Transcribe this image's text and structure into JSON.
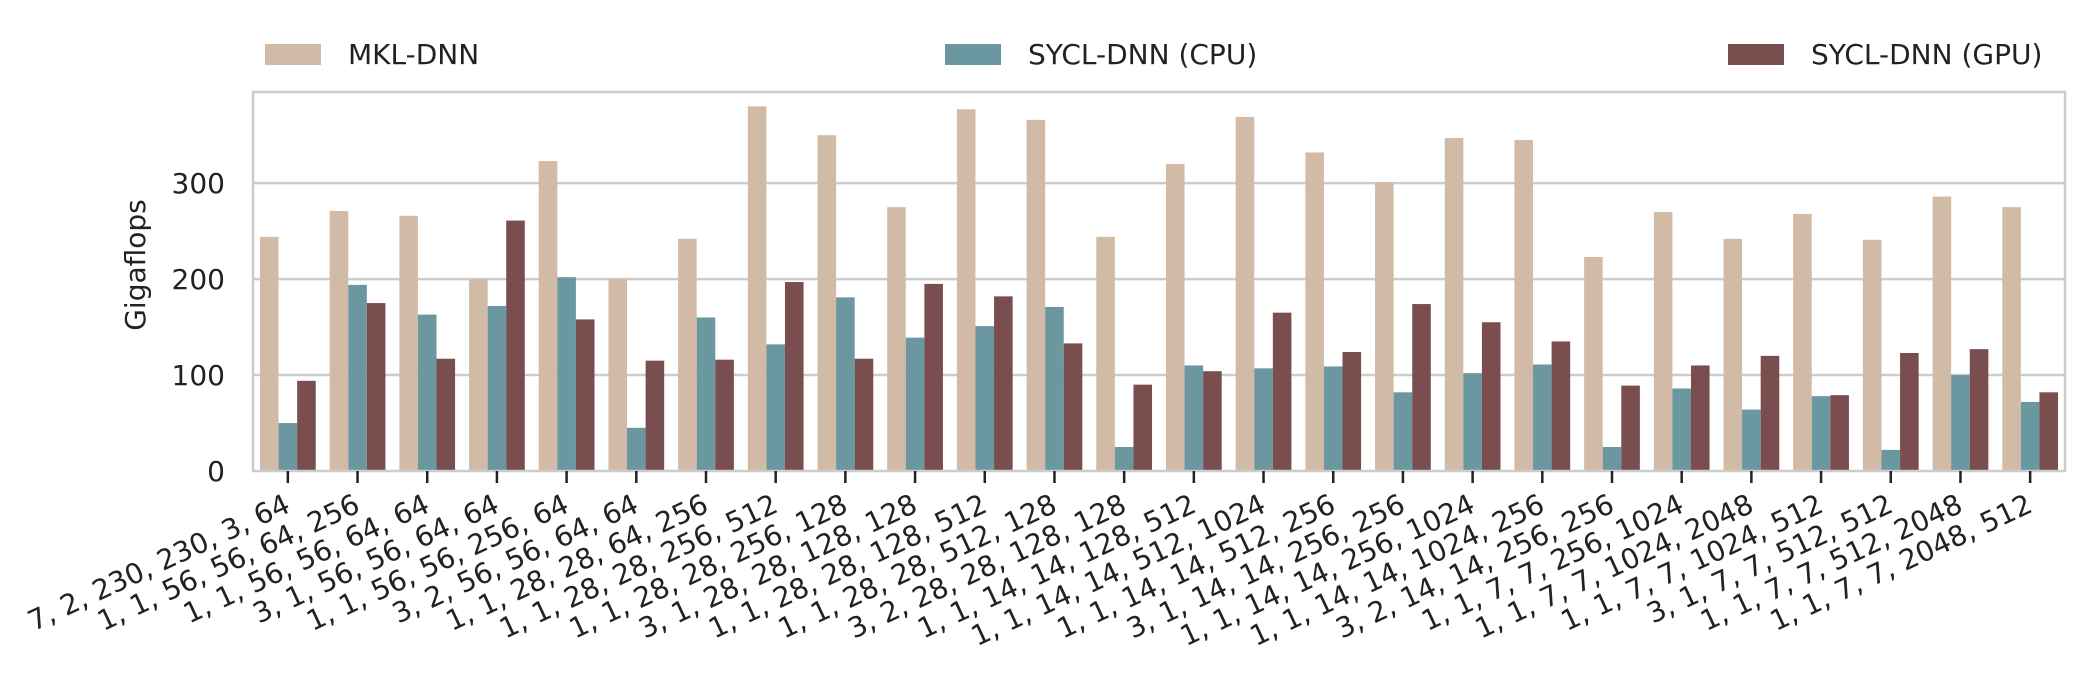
{
  "chart_data": {
    "type": "bar",
    "title": "",
    "xlabel": "",
    "ylabel": "Gigaflops",
    "ylim": [
      0,
      395
    ],
    "yticks": [
      0,
      100,
      200,
      300
    ],
    "grid": "horizontal",
    "legend_position": "top",
    "categories": [
      "7, 2, 230, 230, 3, 64",
      "1, 1, 56, 56, 64, 256",
      "1, 1, 56, 56, 64, 64",
      "3, 1, 56, 56, 64, 64",
      "1, 1, 56, 56, 256, 64",
      "3, 2, 56, 56, 64, 64",
      "1, 1, 28, 28, 64, 256",
      "1, 1, 28, 28, 256, 512",
      "1, 1, 28, 28, 256, 128",
      "3, 1, 28, 28, 128, 128",
      "1, 1, 28, 28, 128, 512",
      "1, 1, 28, 28, 512, 128",
      "3, 2, 28, 28, 128, 128",
      "1, 1, 14, 14, 128, 512",
      "1, 1, 14, 14, 512, 1024",
      "1, 1, 14, 14, 512, 256",
      "3, 1, 14, 14, 256, 256",
      "1, 1, 14, 14, 256, 1024",
      "1, 1, 14, 14, 1024, 256",
      "3, 2, 14, 14, 256, 256",
      "1, 1, 7, 7, 256, 1024",
      "1, 1, 7, 7, 1024, 2048",
      "1, 1, 7, 7, 1024, 512",
      "3, 1, 7, 7, 512, 512",
      "1, 1, 7, 7, 512, 2048",
      "1, 1, 7, 7, 2048, 512"
    ],
    "series": [
      {
        "name": "MKL-DNN",
        "color": "#d2bba6",
        "values": [
          244,
          271,
          266,
          200,
          323,
          200,
          242,
          380,
          350,
          275,
          377,
          366,
          244,
          320,
          369,
          332,
          301,
          347,
          345,
          223,
          270,
          242,
          268,
          241,
          286,
          275
        ]
      },
      {
        "name": "SYCL-DNN (CPU)",
        "color": "#6b97a0",
        "values": [
          50,
          194,
          163,
          172,
          202,
          45,
          160,
          132,
          181,
          139,
          151,
          171,
          25,
          110,
          107,
          109,
          82,
          102,
          111,
          25,
          86,
          64,
          78,
          22,
          100,
          72
        ]
      },
      {
        "name": "SYCL-DNN (GPU)",
        "color": "#7a4d4f",
        "values": [
          94,
          175,
          117,
          261,
          158,
          115,
          116,
          197,
          117,
          195,
          182,
          133,
          90,
          104,
          165,
          124,
          174,
          155,
          135,
          89,
          110,
          120,
          79,
          123,
          127,
          82
        ]
      }
    ]
  }
}
